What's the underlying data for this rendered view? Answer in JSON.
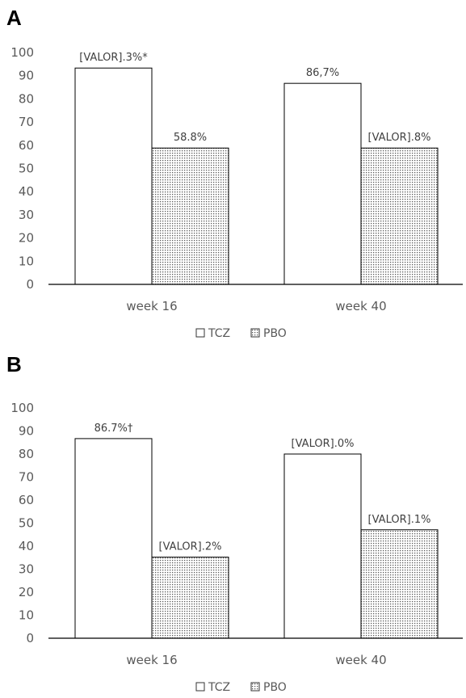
{
  "chart_data": [
    {
      "panel_label": "A",
      "type": "bar",
      "categories": [
        "week 16",
        "week 40"
      ],
      "series": [
        {
          "name": "TCZ",
          "values": [
            93.3,
            86.7
          ],
          "labels": [
            "[VALOR].3%*",
            "86,7%"
          ],
          "fill": "#ffffff",
          "pattern": "none"
        },
        {
          "name": "PBO",
          "values": [
            58.8,
            58.8
          ],
          "labels": [
            "58.8%",
            "[VALOR].8%"
          ],
          "fill": "#d9d9d9",
          "pattern": "dots"
        }
      ],
      "yticks": [
        "0",
        "10",
        "20",
        "30",
        "40",
        "50",
        "60",
        "70",
        "80",
        "90",
        "100"
      ],
      "ylim": [
        0,
        100
      ],
      "grid": false,
      "legend_position": "bottom"
    },
    {
      "panel_label": "B",
      "type": "bar",
      "categories": [
        "week 16",
        "week 40"
      ],
      "series": [
        {
          "name": "TCZ",
          "values": [
            86.7,
            80.0
          ],
          "labels": [
            "86.7%†",
            "[VALOR].0%"
          ],
          "fill": "#ffffff",
          "pattern": "none"
        },
        {
          "name": "PBO",
          "values": [
            35.2,
            47.1
          ],
          "labels": [
            "[VALOR].2%",
            "[VALOR].1%"
          ],
          "fill": "#d9d9d9",
          "pattern": "dots"
        }
      ],
      "yticks": [
        "0",
        "10",
        "20",
        "30",
        "40",
        "50",
        "60",
        "70",
        "80",
        "90",
        "100"
      ],
      "ylim": [
        0,
        100
      ],
      "grid": false,
      "legend_position": "bottom"
    }
  ]
}
